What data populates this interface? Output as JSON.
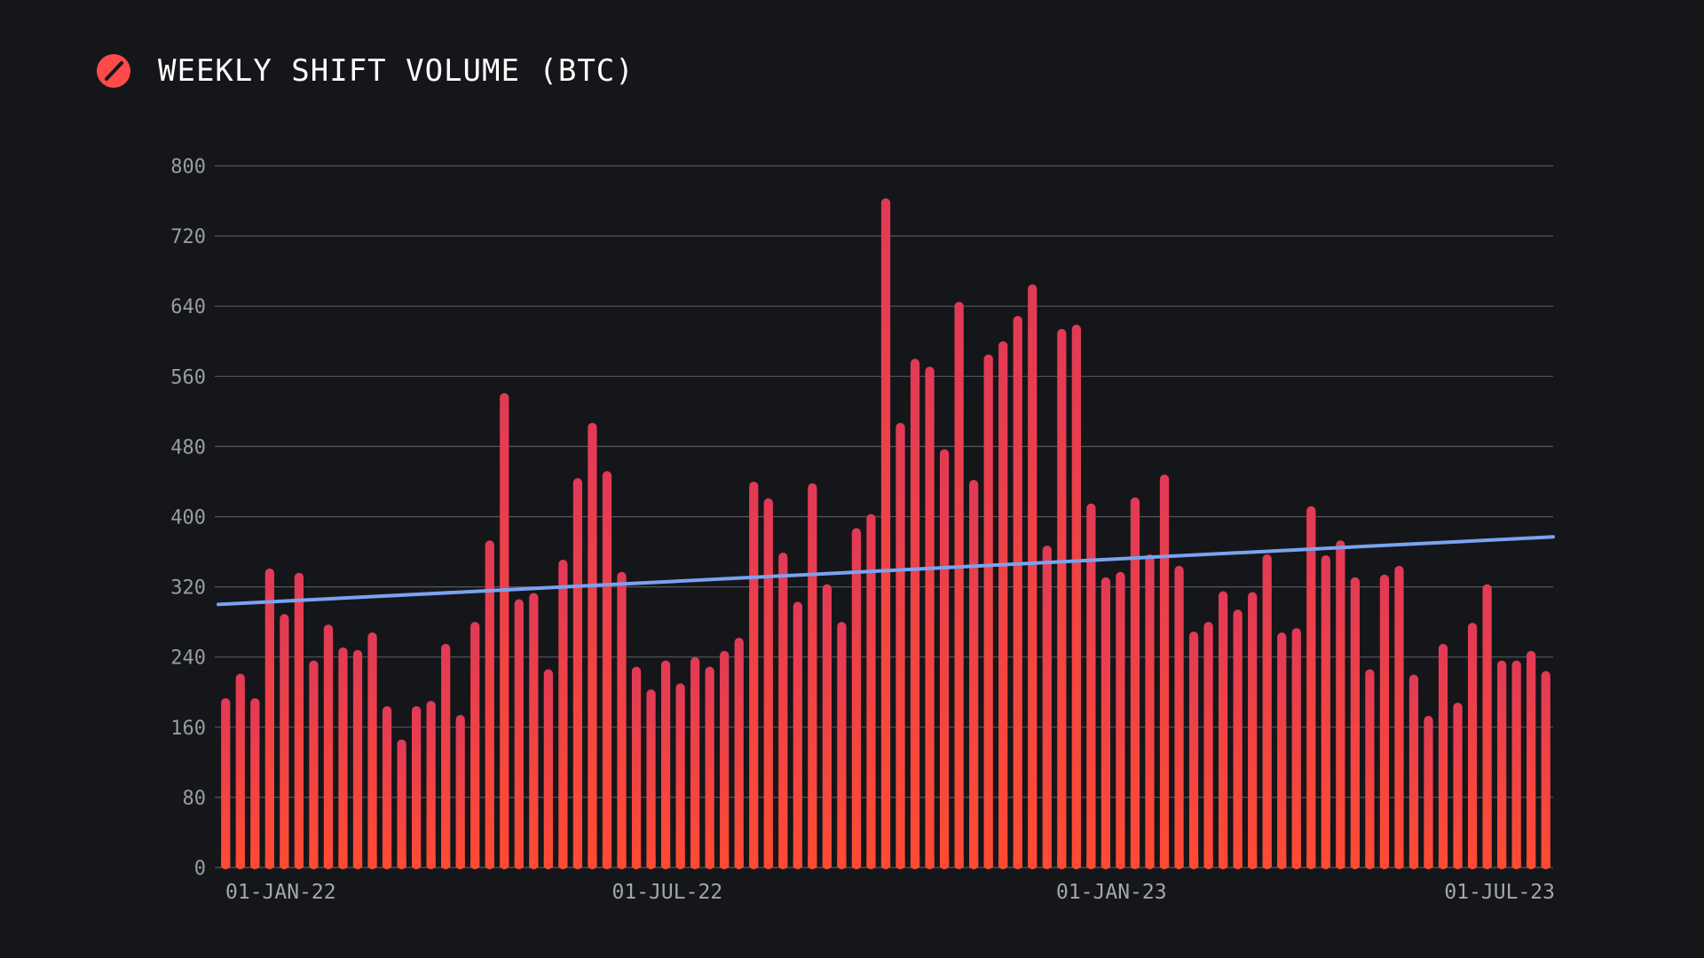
{
  "header": {
    "title": "WEEKLY SHIFT VOLUME (BTC)",
    "logo_icon": "slashed-circle-logo-icon",
    "logo_color": "#ff4a4a"
  },
  "colors": {
    "background": "#15161a",
    "grid": "#55575d",
    "bar_top": "#e23a56",
    "bar_bottom": "#ff4b33",
    "trend_line": "#7aa2f0",
    "tick_text": "#9a9ca3"
  },
  "chart_data": {
    "type": "bar",
    "title": "WEEKLY SHIFT VOLUME (BTC)",
    "xlabel": "",
    "ylabel": "",
    "ylim": [
      0,
      800
    ],
    "yticks": [
      0,
      80,
      160,
      240,
      320,
      400,
      480,
      560,
      640,
      720,
      800
    ],
    "grid": true,
    "x_date_range": [
      "2021-12-27",
      "2023-07-03"
    ],
    "x_ticks": [
      {
        "date": "2022-01-01",
        "label": "01-JAN-22"
      },
      {
        "date": "2022-07-01",
        "label": "01-JUL-22"
      },
      {
        "date": "2023-01-01",
        "label": "01-JAN-23"
      },
      {
        "date": "2023-07-01",
        "label": "01-JUL-23"
      }
    ],
    "series": [
      {
        "type": "bar",
        "values": [
          193,
          221,
          193,
          341,
          289,
          336,
          236,
          277,
          251,
          248,
          268,
          184,
          146,
          184,
          190,
          255,
          174,
          280,
          373,
          541,
          306,
          313,
          226,
          351,
          444,
          507,
          452,
          337,
          229,
          203,
          236,
          210,
          240,
          229,
          247,
          262,
          440,
          421,
          359,
          303,
          438,
          323,
          280,
          387,
          403,
          763,
          507,
          580,
          571,
          477,
          645,
          442,
          585,
          600,
          629,
          665,
          367,
          614,
          619,
          415,
          331,
          337,
          422,
          357,
          448,
          344,
          269,
          280,
          315,
          294,
          314,
          357,
          268,
          273,
          412,
          356,
          373,
          331,
          226,
          334,
          344,
          220,
          173,
          255,
          188,
          279,
          323,
          236,
          236,
          247,
          224
        ]
      },
      {
        "type": "line",
        "style": "linear-trend",
        "x": [
          "2021-12-27",
          "2023-07-03"
        ],
        "values": [
          300,
          377
        ]
      }
    ]
  }
}
